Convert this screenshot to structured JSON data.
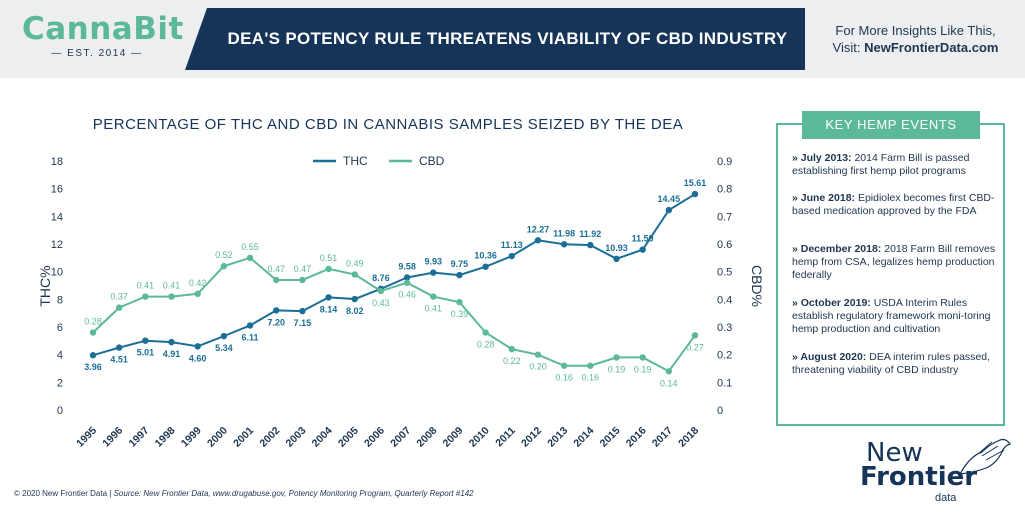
{
  "header": {
    "logo_main": "CannaBit",
    "logo_sub": "— EST. 2014 —",
    "title": "DEA'S POTENCY RULE THREATENS VIABILITY OF CBD INDUSTRY",
    "insights_line1": "For More Insights Like This,",
    "insights_visit": "Visit: ",
    "insights_url": "NewFrontierData.com"
  },
  "colors": {
    "thc": "#1b6e96",
    "cbd": "#5cb89a",
    "navy": "#153458",
    "text": "#1f3550"
  },
  "chart_data": {
    "type": "line",
    "title": "PERCENTAGE OF THC AND CBD IN CANNABIS SAMPLES SEIZED BY THE DEA",
    "categories": [
      "1995",
      "1996",
      "1997",
      "1998",
      "1999",
      "2000",
      "2001",
      "2002",
      "2003",
      "2004",
      "2005",
      "2006",
      "2007",
      "2008",
      "2009",
      "2010",
      "2011",
      "2012",
      "2013",
      "2014",
      "2015",
      "2016",
      "2017",
      "2018"
    ],
    "series": [
      {
        "name": "THC",
        "axis": "left",
        "color": "#1b6e96",
        "values": [
          3.96,
          4.51,
          5.01,
          4.91,
          4.6,
          5.34,
          6.11,
          7.2,
          7.15,
          8.14,
          8.02,
          8.76,
          9.58,
          9.93,
          9.75,
          10.36,
          11.13,
          12.27,
          11.98,
          11.92,
          10.93,
          11.59,
          14.45,
          15.61
        ]
      },
      {
        "name": "CBD",
        "axis": "right",
        "color": "#5cb89a",
        "values": [
          0.28,
          0.37,
          0.41,
          0.41,
          0.42,
          0.52,
          0.55,
          0.47,
          0.47,
          0.51,
          0.49,
          0.43,
          0.46,
          0.41,
          0.39,
          0.28,
          0.22,
          0.2,
          0.16,
          0.16,
          0.19,
          0.19,
          0.14,
          0.27
        ]
      }
    ],
    "thc_labels": [
      "3.96",
      "4.51",
      "5.01",
      "4.91",
      "4.60",
      "5.34",
      "6.11",
      "7.20",
      "7.15",
      "8.14",
      "8.02",
      "8.76",
      "9.58",
      "9.93",
      "9.75",
      "10.36",
      "11.13",
      "12.27",
      "11.98",
      "11.92",
      "10.93",
      "11.59",
      "14.45",
      "15.61"
    ],
    "cbd_labels": [
      "0.28",
      "0.37",
      "0.41",
      "0.41",
      "0.42",
      "0.52",
      "0.55",
      "0.47",
      "0.47",
      "0.51",
      "0.49",
      "0.43",
      "0.46",
      "0.41",
      "0.39",
      "0.28",
      "0.22",
      "0.20",
      "0.16",
      "0.16",
      "0.19",
      "0.19",
      "0.14",
      "0.27"
    ],
    "y_left": {
      "label": "THC%",
      "ticks": [
        "0",
        "2",
        "4",
        "6",
        "8",
        "10",
        "12",
        "14",
        "16",
        "18"
      ],
      "min": 0,
      "max": 18
    },
    "y_right": {
      "label": "CBD%",
      "ticks": [
        "0",
        "0.1",
        "0.2",
        "0.3",
        "0.4",
        "0.5",
        "0.6",
        "0.7",
        "0.8",
        "0.9"
      ],
      "min": 0,
      "max": 0.9
    },
    "legend": {
      "position": "top-center",
      "items": [
        "THC",
        "CBD"
      ]
    },
    "grid": false
  },
  "events": {
    "heading": "KEY HEMP EVENTS",
    "items": [
      {
        "date": "» July 2013:",
        "text": " 2014 Farm Bill is passed establishing first hemp pilot programs"
      },
      {
        "date": "» June 2018:",
        "text": " Epidiolex becomes first CBD-based medication approved by the FDA"
      },
      {
        "date": "» December 2018:",
        "text": " 2018 Farm Bill removes hemp from CSA, legalizes hemp production federally"
      },
      {
        "date": "» October 2019:",
        "text": " USDA Interim Rules establish regulatory framework moni-toring hemp production and cultivation"
      },
      {
        "date": "» August 2020:",
        "text": " DEA interim rules passed, threatening viability of CBD industry"
      }
    ]
  },
  "footer": {
    "copyright": "© 2020  New Frontier Data | ",
    "source": "Source: New Frontier Data, www.drugabuse.gov, Potency Monitoring Program, Quarterly Report #142"
  },
  "brand": {
    "line1": "New",
    "line2": "Frontier",
    "line3": "data"
  }
}
